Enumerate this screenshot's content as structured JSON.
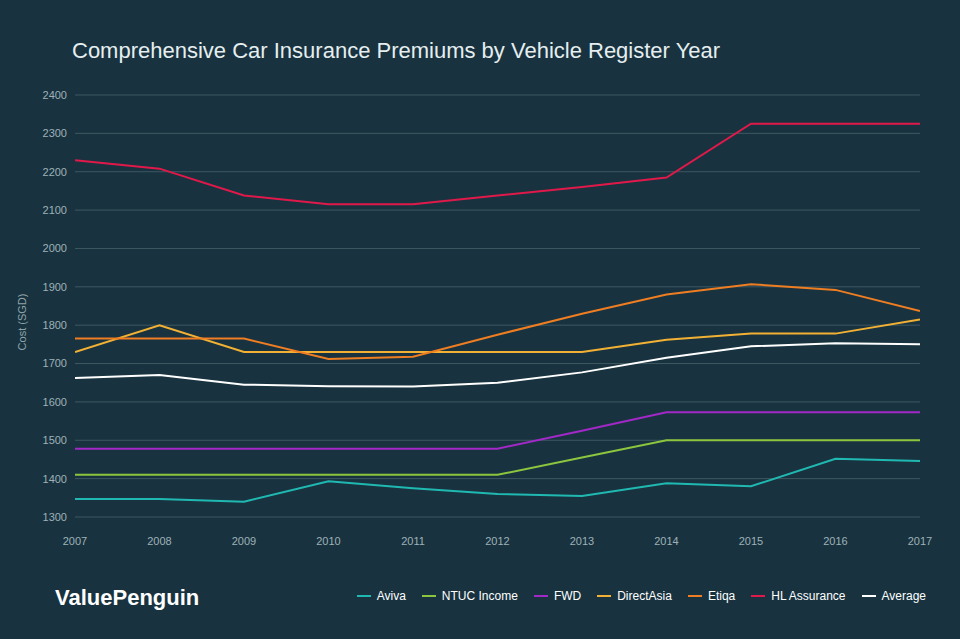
{
  "chart_data": {
    "type": "line",
    "title": "Comprehensive Car Insurance Premiums by Vehicle Register Year",
    "y_label": "Cost (SGD)",
    "annotations": [
      "ValuePenguin"
    ],
    "x": [
      2007,
      2008,
      2009,
      2010,
      2011,
      2012,
      2013,
      2014,
      2015,
      2016,
      2017
    ],
    "xlim": [
      2007,
      2017
    ],
    "xticks": [
      2007,
      2008,
      2009,
      2010,
      2011,
      2012,
      2013,
      2014,
      2015,
      2016,
      2017
    ],
    "ylim": [
      1300,
      2400
    ],
    "yticks": [
      1300,
      1400,
      1500,
      1600,
      1700,
      1800,
      1900,
      2000,
      2100,
      2200,
      2300,
      2400
    ],
    "grid": true,
    "legend": "bottom",
    "series": [
      {
        "name": "Aviva",
        "color": "#20b9b2",
        "values": [
          1347,
          1347,
          1340,
          1393,
          1375,
          1360,
          1355,
          1388,
          1380,
          1452,
          1446
        ]
      },
      {
        "name": "NTUC Income",
        "color": "#8cc63f",
        "values": [
          1410,
          1410,
          1410,
          1410,
          1410,
          1410,
          1455,
          1500,
          1500,
          1500,
          1500
        ]
      },
      {
        "name": "FWD",
        "color": "#a328c8",
        "values": [
          1478,
          1478,
          1478,
          1478,
          1478,
          1478,
          1525,
          1573,
          1573,
          1573,
          1573
        ]
      },
      {
        "name": "DirectAsia",
        "color": "#f2b134",
        "values": [
          1730,
          1800,
          1730,
          1730,
          1730,
          1730,
          1730,
          1762,
          1778,
          1778,
          1815
        ]
      },
      {
        "name": "Etiqa",
        "color": "#ef7d22",
        "values": [
          1765,
          1765,
          1765,
          1712,
          1718,
          1775,
          1830,
          1880,
          1907,
          1892,
          1837
        ]
      },
      {
        "name": "HL Assurance",
        "color": "#e0194a",
        "values": [
          2230,
          2208,
          2138,
          2115,
          2115,
          2138,
          2160,
          2185,
          2325,
          2325,
          2325
        ]
      },
      {
        "name": "Average",
        "color": "#ffffff",
        "values": [
          1662,
          1670,
          1645,
          1641,
          1640,
          1650,
          1677,
          1715,
          1745,
          1753,
          1750
        ]
      }
    ]
  }
}
